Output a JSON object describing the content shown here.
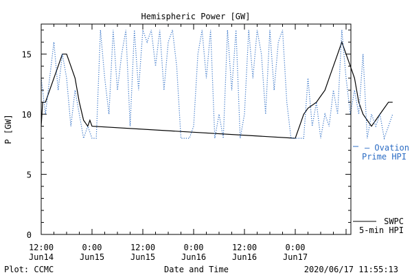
{
  "chart_data": {
    "type": "line",
    "title": "Hemispheric Power [GW]",
    "ylabel": "P [GW]",
    "xlabel": "Date and Time",
    "ylim": [
      0,
      17.5
    ],
    "xlim": [
      "2020-06-14 12:00",
      "2020-06-17 23:00"
    ],
    "yticks": [
      "0",
      "5",
      "10",
      "15"
    ],
    "xticks": [
      {
        "time": "12:00",
        "date": "Jun14"
      },
      {
        "time": "0:00",
        "date": "Jun15"
      },
      {
        "time": "12:00",
        "date": "Jun15"
      },
      {
        "time": "0:00",
        "date": "Jun16"
      },
      {
        "time": "12:00",
        "date": "Jun16"
      },
      {
        "time": "0:00",
        "date": "Jun17"
      }
    ],
    "series": [
      {
        "name": "SWPC 5-min HPI",
        "legend": [
          "SWPC",
          "5-min HPI"
        ],
        "color": "#000000",
        "style": "solid",
        "x": [
          "2020-06-14 12:00",
          "2020-06-14 12:20",
          "2020-06-14 13:00",
          "2020-06-14 14:00",
          "2020-06-14 15:00",
          "2020-06-14 16:00",
          "2020-06-14 17:00",
          "2020-06-14 18:00",
          "2020-06-14 19:00",
          "2020-06-14 20:00",
          "2020-06-14 21:00",
          "2020-06-14 22:00",
          "2020-06-14 23:00",
          "2020-06-14 23:30",
          "2020-06-15 00:00",
          "2020-06-17 00:00",
          "2020-06-17 01:00",
          "2020-06-17 02:00",
          "2020-06-17 03:00",
          "2020-06-17 05:00",
          "2020-06-17 06:00",
          "2020-06-17 07:00",
          "2020-06-17 08:00",
          "2020-06-17 09:00",
          "2020-06-17 10:00",
          "2020-06-17 11:00",
          "2020-06-17 12:00",
          "2020-06-17 13:00",
          "2020-06-17 14:00",
          "2020-06-17 15:00",
          "2020-06-17 16:00",
          "2020-06-17 17:00",
          "2020-06-17 18:00",
          "2020-06-17 19:00",
          "2020-06-17 20:00",
          "2020-06-17 21:00",
          "2020-06-17 22:00",
          "2020-06-17 23:00"
        ],
        "y": [
          9,
          11,
          11,
          12,
          13,
          14,
          15,
          15,
          14,
          13,
          11,
          9.5,
          9,
          9.5,
          9,
          8,
          9,
          10,
          10.5,
          11,
          11.5,
          12,
          13,
          14,
          15,
          16,
          15,
          14,
          13,
          11,
          10,
          9.5,
          9,
          9.5,
          10,
          10.5,
          11,
          11
        ]
      },
      {
        "name": "Ovation Prime HPI",
        "legend": [
          "— Ovation",
          "Prime HPI"
        ],
        "color": "#2b6cc4",
        "style": "dotted",
        "x": [
          "2020-06-14 12:00",
          "2020-06-14 13:00",
          "2020-06-14 14:00",
          "2020-06-14 15:00",
          "2020-06-14 16:00",
          "2020-06-14 17:00",
          "2020-06-14 18:00",
          "2020-06-14 19:00",
          "2020-06-14 20:00",
          "2020-06-14 21:00",
          "2020-06-14 22:00",
          "2020-06-14 23:00",
          "2020-06-15 00:00",
          "2020-06-15 01:00",
          "2020-06-15 02:00",
          "2020-06-15 03:00",
          "2020-06-15 04:00",
          "2020-06-15 05:00",
          "2020-06-15 06:00",
          "2020-06-15 07:00",
          "2020-06-15 08:00",
          "2020-06-15 09:00",
          "2020-06-15 10:00",
          "2020-06-15 11:00",
          "2020-06-15 12:00",
          "2020-06-15 13:00",
          "2020-06-15 14:00",
          "2020-06-15 15:00",
          "2020-06-15 16:00",
          "2020-06-15 17:00",
          "2020-06-15 18:00",
          "2020-06-15 19:00",
          "2020-06-15 20:00",
          "2020-06-15 21:00",
          "2020-06-15 22:00",
          "2020-06-15 23:00",
          "2020-06-16 00:00",
          "2020-06-16 01:00",
          "2020-06-16 02:00",
          "2020-06-16 03:00",
          "2020-06-16 04:00",
          "2020-06-16 05:00",
          "2020-06-16 06:00",
          "2020-06-16 07:00",
          "2020-06-16 08:00",
          "2020-06-16 09:00",
          "2020-06-16 10:00",
          "2020-06-16 11:00",
          "2020-06-16 12:00",
          "2020-06-16 13:00",
          "2020-06-16 14:00",
          "2020-06-16 15:00",
          "2020-06-16 16:00",
          "2020-06-16 17:00",
          "2020-06-16 18:00",
          "2020-06-16 19:00",
          "2020-06-16 20:00",
          "2020-06-16 21:00",
          "2020-06-16 22:00",
          "2020-06-16 23:00",
          "2020-06-17 00:00",
          "2020-06-17 01:00",
          "2020-06-17 02:00",
          "2020-06-17 03:00",
          "2020-06-17 04:00",
          "2020-06-17 05:00",
          "2020-06-17 06:00",
          "2020-06-17 07:00",
          "2020-06-17 08:00",
          "2020-06-17 09:00",
          "2020-06-17 10:00",
          "2020-06-17 11:00",
          "2020-06-17 12:00",
          "2020-06-17 13:00",
          "2020-06-17 14:00",
          "2020-06-17 15:00",
          "2020-06-17 16:00",
          "2020-06-17 17:00",
          "2020-06-17 18:00",
          "2020-06-17 19:00",
          "2020-06-17 20:00",
          "2020-06-17 21:00",
          "2020-06-17 22:00",
          "2020-06-17 23:00"
        ],
        "y": [
          13,
          10,
          13,
          16,
          12,
          15,
          13,
          9,
          12,
          10,
          8,
          9,
          8,
          8,
          17,
          13,
          10,
          17,
          12,
          15,
          17,
          9,
          17,
          12,
          17,
          16,
          17,
          14,
          17,
          12,
          16,
          17,
          14,
          8,
          8,
          8,
          9,
          15,
          17,
          13,
          17,
          8,
          10,
          8,
          17,
          12,
          17,
          8,
          10,
          17,
          13,
          17,
          15,
          10,
          17,
          12,
          16,
          17,
          11,
          8,
          8,
          8,
          8,
          13,
          9,
          11,
          8,
          10,
          9,
          12,
          10,
          17,
          13,
          10,
          12,
          10,
          15,
          8,
          10,
          9,
          10,
          8,
          9,
          10
        ]
      }
    ]
  },
  "footer": {
    "left": "Plot: CCMC",
    "center": "Date and Time",
    "right": "2020/06/17 11:55:13"
  }
}
